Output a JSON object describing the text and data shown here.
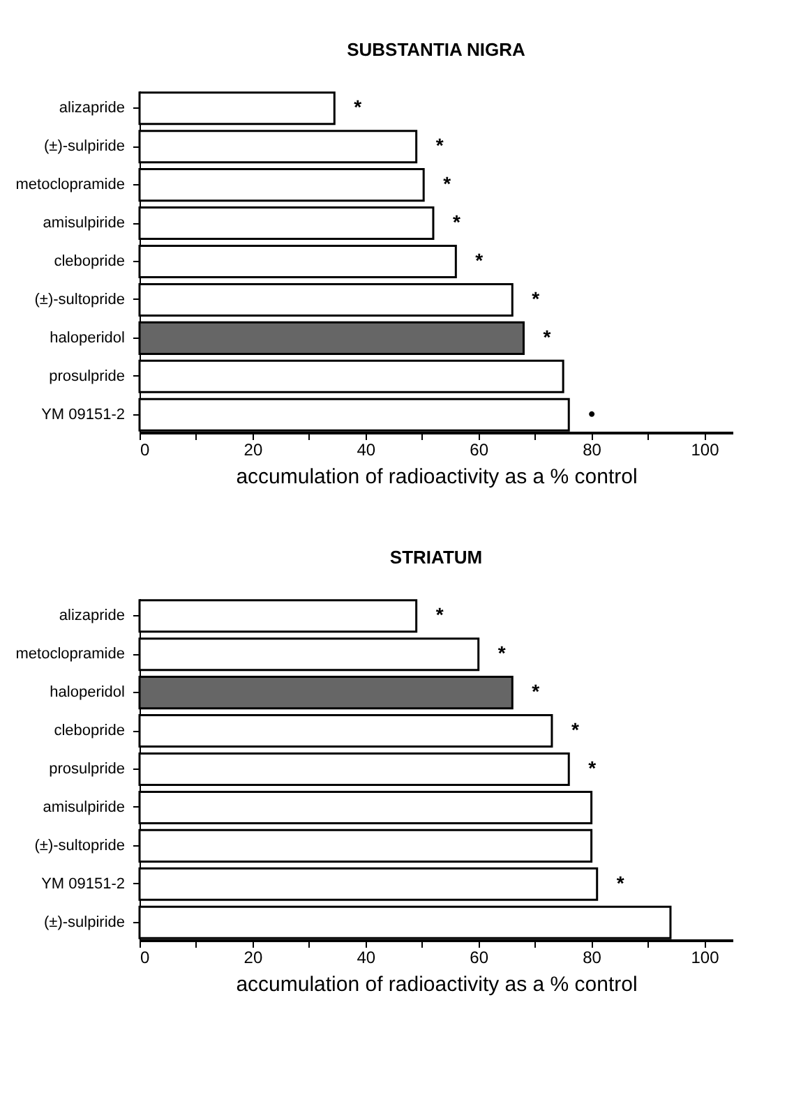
{
  "chart_data": [
    {
      "type": "bar",
      "orientation": "horizontal",
      "title": "SUBSTANTIA NIGRA",
      "xlabel": "accumulation of radioactivity as a % control",
      "categories": [
        "alizapride",
        "(±)-sulpiride",
        "metoclopramide",
        "amisulpiride",
        "clebopride",
        "(±)-sultopride",
        "haloperidol",
        "prosulpride",
        "YM 09151-2"
      ],
      "values": [
        34.5,
        49,
        50.3,
        52,
        56,
        66,
        68,
        75,
        76
      ],
      "colors": [
        "#ffffff",
        "#ffffff",
        "#ffffff",
        "#ffffff",
        "#ffffff",
        "#ffffff",
        "#666666",
        "#ffffff",
        "#ffffff"
      ],
      "xlim": [
        0,
        105
      ],
      "xticks": [
        0,
        {
          "value": 10,
          "label": null
        },
        20,
        {
          "value": 30,
          "label": null
        },
        40,
        {
          "value": 50,
          "label": null
        },
        60,
        {
          "value": 70,
          "label": null
        },
        80,
        {
          "value": 90,
          "label": null
        },
        100
      ],
      "grid": false,
      "annotations": [
        {
          "text": "*",
          "x": 34.5,
          "y": "alizapride"
        },
        {
          "text": "*",
          "x": 49,
          "y": "(±)-sulpiride"
        },
        {
          "text": "*",
          "x": 50.3,
          "y": "metoclopramide"
        },
        {
          "text": "*",
          "x": 52,
          "y": "amisulpiride"
        },
        {
          "text": "*",
          "x": 56,
          "y": "clebopride"
        },
        {
          "text": "*",
          "x": 66,
          "y": "(±)-sultopride"
        },
        {
          "text": "*",
          "x": 68,
          "y": "haloperidol"
        },
        {
          "text": "•",
          "x": 76,
          "y": "YM 09151-2"
        }
      ]
    },
    {
      "type": "bar",
      "orientation": "horizontal",
      "title": "STRIATUM",
      "xlabel": "accumulation of radioactivity as a % control",
      "categories": [
        "alizapride",
        "metoclopramide",
        "haloperidol",
        "clebopride",
        "prosulpride",
        "amisulpiride",
        "(±)-sultopride",
        "YM 09151-2",
        "(±)-sulpiride"
      ],
      "values": [
        49,
        60,
        66,
        73,
        76,
        80,
        80,
        81,
        94
      ],
      "colors": [
        "#ffffff",
        "#ffffff",
        "#666666",
        "#ffffff",
        "#ffffff",
        "#ffffff",
        "#ffffff",
        "#ffffff",
        "#ffffff"
      ],
      "xlim": [
        0,
        105
      ],
      "xticks": [
        0,
        {
          "value": 10,
          "label": null
        },
        20,
        {
          "value": 30,
          "label": null
        },
        40,
        {
          "value": 50,
          "label": null
        },
        60,
        {
          "value": 70,
          "label": null
        },
        80,
        {
          "value": 90,
          "label": null
        },
        100
      ],
      "grid": false,
      "annotations": [
        {
          "text": "*",
          "x": 49,
          "y": "alizapride"
        },
        {
          "text": "*",
          "x": 60,
          "y": "metoclopramide"
        },
        {
          "text": "*",
          "x": 66,
          "y": "haloperidol"
        },
        {
          "text": "*",
          "x": 73,
          "y": "clebopride"
        },
        {
          "text": "*",
          "x": 76,
          "y": "prosulpride"
        },
        {
          "text": "*",
          "x": 81,
          "y": "YM 09151-2"
        }
      ]
    }
  ]
}
